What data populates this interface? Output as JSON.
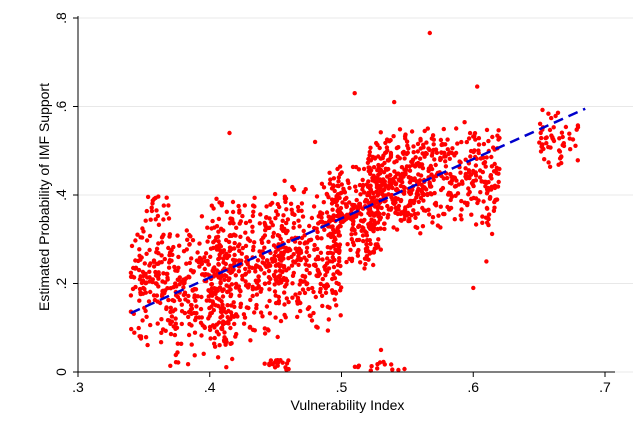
{
  "chart_data": {
    "type": "scatter",
    "xlabel": "Vulnerability Index",
    "ylabel": "Estimated Probability of IMF Support",
    "xlim": [
      0.3,
      0.7
    ],
    "ylim": [
      0.0,
      0.8
    ],
    "xticks": [
      ".3",
      ".4",
      ".5",
      ".6",
      ".7"
    ],
    "xtick_values": [
      0.3,
      0.4,
      0.5,
      0.6,
      0.7
    ],
    "yticks": [
      "0",
      ".2",
      ".4",
      ".6",
      ".8"
    ],
    "ytick_values": [
      0.0,
      0.2,
      0.4,
      0.6,
      0.8
    ],
    "grid": "horizontal",
    "legend": "none",
    "series": [
      {
        "kind": "points",
        "color": "#ff0000",
        "clusters": [
          {
            "x": [
              0.34,
              0.37
            ],
            "y": [
              0.04,
              0.38
            ],
            "n": 140
          },
          {
            "x": [
              0.37,
              0.42
            ],
            "y": [
              0.0,
              0.36
            ],
            "n": 260
          },
          {
            "x": [
              0.4,
              0.46
            ],
            "y": [
              0.06,
              0.42
            ],
            "n": 330
          },
          {
            "x": [
              0.45,
              0.5
            ],
            "y": [
              0.08,
              0.44
            ],
            "n": 260
          },
          {
            "x": [
              0.49,
              0.53
            ],
            "y": [
              0.22,
              0.48
            ],
            "n": 240
          },
          {
            "x": [
              0.52,
              0.56
            ],
            "y": [
              0.3,
              0.56
            ],
            "n": 300
          },
          {
            "x": [
              0.56,
              0.62
            ],
            "y": [
              0.3,
              0.58
            ],
            "n": 280
          },
          {
            "x": [
              0.65,
              0.68
            ],
            "y": [
              0.45,
              0.6
            ],
            "n": 55
          },
          {
            "x": [
              0.44,
              0.46
            ],
            "y": [
              0.0,
              0.04
            ],
            "n": 20
          },
          {
            "x": [
              0.51,
              0.55
            ],
            "y": [
              0.0,
              0.03
            ],
            "n": 14
          },
          {
            "x": [
              0.35,
              0.37
            ],
            "y": [
              0.32,
              0.4
            ],
            "n": 20
          }
        ],
        "outliers": [
          {
            "x": 0.567,
            "y": 0.766
          },
          {
            "x": 0.603,
            "y": 0.645
          },
          {
            "x": 0.415,
            "y": 0.54
          },
          {
            "x": 0.54,
            "y": 0.61
          },
          {
            "x": 0.51,
            "y": 0.63
          },
          {
            "x": 0.48,
            "y": 0.52
          },
          {
            "x": 0.6,
            "y": 0.19
          },
          {
            "x": 0.53,
            "y": 0.05
          },
          {
            "x": 0.61,
            "y": 0.25
          }
        ]
      },
      {
        "kind": "fitted-line",
        "color": "#0000cc",
        "style": "dashed",
        "x": [
          0.34,
          0.685
        ],
        "y": [
          0.133,
          0.595
        ]
      }
    ]
  }
}
